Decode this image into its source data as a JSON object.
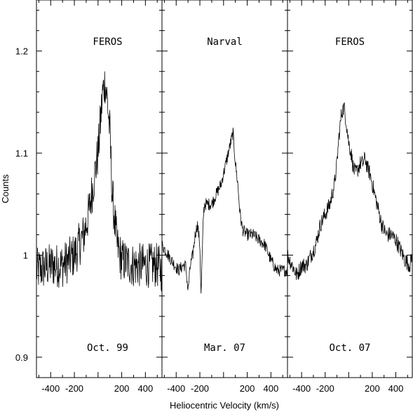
{
  "chart_data": {
    "type": "line",
    "xlabel": "Heliocentric Velocity (km/s)",
    "ylabel": "Counts",
    "ylim": [
      0.88,
      1.25
    ],
    "yticks": [
      0.9,
      1,
      1.1,
      1.2
    ],
    "ytick_labels": [
      "0.9",
      "1",
      "1.1",
      "1.2"
    ],
    "shared_y_axis": true,
    "panels": [
      {
        "top_label": "FEROS",
        "bottom_label": "Oct. 99",
        "xlim": [
          -520,
          540
        ],
        "xticks": [
          -400,
          -200,
          0,
          200,
          400
        ],
        "xtick_labels": [
          "-400",
          "-200",
          "",
          "200",
          "400"
        ],
        "noise": 0.022,
        "x": [
          -520,
          -400,
          -300,
          -200,
          -160,
          -120,
          -80,
          -40,
          0,
          20,
          40,
          60,
          80,
          100,
          120,
          160,
          200,
          300,
          400,
          500,
          540
        ],
        "y": [
          0.985,
          0.99,
          0.99,
          1.0,
          1.01,
          1.02,
          1.04,
          1.07,
          1.1,
          1.13,
          1.16,
          1.17,
          1.15,
          1.12,
          1.06,
          1.01,
          0.995,
          0.99,
          0.99,
          0.99,
          0.985
        ]
      },
      {
        "top_label": "Narval",
        "bottom_label": "Mar. 07",
        "xlim": [
          -520,
          540
        ],
        "xticks": [
          -400,
          -200,
          0,
          200,
          400
        ],
        "xtick_labels": [
          "-400",
          "-200",
          "",
          "200",
          "400"
        ],
        "noise": 0.006,
        "x": [
          -520,
          -440,
          -380,
          -340,
          -320,
          -300,
          -280,
          -260,
          -240,
          -220,
          -200,
          -190,
          -180,
          -170,
          -160,
          -140,
          -120,
          -100,
          -60,
          -20,
          0,
          20,
          40,
          60,
          80,
          100,
          120,
          140,
          160,
          200,
          250,
          300,
          350,
          400,
          450,
          500,
          540
        ],
        "y": [
          1.01,
          0.995,
          0.985,
          0.99,
          0.99,
          0.965,
          0.99,
          1.0,
          1.02,
          1.03,
          1.01,
          0.96,
          1.0,
          1.04,
          1.05,
          1.05,
          1.05,
          1.05,
          1.06,
          1.07,
          1.08,
          1.09,
          1.1,
          1.11,
          1.12,
          1.09,
          1.07,
          1.04,
          1.025,
          1.02,
          1.02,
          1.015,
          1.01,
          0.995,
          0.985,
          0.985,
          0.985
        ]
      },
      {
        "top_label": "FEROS",
        "bottom_label": "Oct. 07",
        "xlim": [
          -520,
          540
        ],
        "xticks": [
          -400,
          -200,
          0,
          200,
          400
        ],
        "xtick_labels": [
          "-400",
          "-200",
          "",
          "200",
          "400"
        ],
        "noise": 0.008,
        "x": [
          -520,
          -480,
          -440,
          -400,
          -360,
          -320,
          -280,
          -240,
          -200,
          -160,
          -120,
          -100,
          -80,
          -60,
          -40,
          -20,
          0,
          20,
          40,
          60,
          80,
          100,
          120,
          140,
          160,
          180,
          200,
          240,
          280,
          320,
          360,
          400,
          440,
          480,
          520,
          540
        ],
        "y": [
          1.0,
          0.99,
          0.98,
          0.99,
          0.99,
          1.0,
          1.01,
          1.03,
          1.04,
          1.05,
          1.07,
          1.09,
          1.12,
          1.14,
          1.145,
          1.13,
          1.11,
          1.1,
          1.085,
          1.08,
          1.085,
          1.09,
          1.09,
          1.095,
          1.085,
          1.08,
          1.07,
          1.05,
          1.03,
          1.02,
          1.02,
          1.015,
          1.005,
          0.995,
          0.99,
          1.0
        ]
      }
    ]
  }
}
